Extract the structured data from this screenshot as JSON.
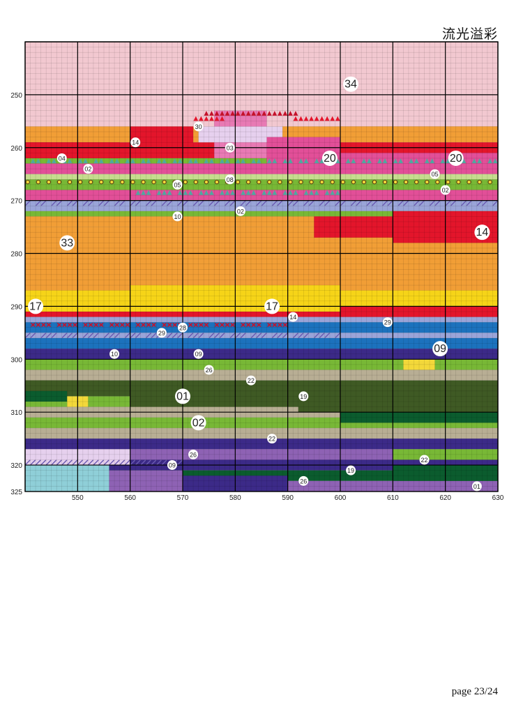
{
  "title": "流光溢彩",
  "page_label": "page 23/24",
  "grid": {
    "x_ticks": [
      550,
      560,
      570,
      580,
      590,
      600,
      610,
      620,
      630
    ],
    "y_ticks": [
      250,
      260,
      270,
      280,
      290,
      300,
      310,
      320,
      325
    ],
    "x_range": [
      540,
      630
    ],
    "y_range": [
      240,
      325
    ]
  },
  "palette": {
    "01": "#3f5a24",
    "02": "#78b836",
    "03": "#e87ab4",
    "04": "#4ea8a0",
    "05": "#f3d83a",
    "08": "#c6dc8e",
    "09": "#3c2a88",
    "10": "#9aa4d8",
    "14": "#e3152b",
    "17": "#f6d418",
    "19": "#0b5c2e",
    "20": "#e24f98",
    "22": "#b8ae94",
    "26": "#8e62b4",
    "28": "#b12a3c",
    "29": "#1c72bd",
    "30": "#e6d0ee",
    "33": "#f19e36",
    "34": "#f2c8d0",
    "sky2": "#8fcfd8"
  },
  "symbol_labels": [
    {
      "code": "34",
      "x": 602,
      "y": 248,
      "big": true
    },
    {
      "code": "14",
      "x": 561,
      "y": 259,
      "big": false
    },
    {
      "code": "30",
      "x": 573,
      "y": 256,
      "big": false
    },
    {
      "code": "03",
      "x": 579,
      "y": 260,
      "big": false
    },
    {
      "code": "20",
      "x": 598,
      "y": 262,
      "big": true
    },
    {
      "code": "20",
      "x": 622,
      "y": 262,
      "big": true
    },
    {
      "code": "04",
      "x": 547,
      "y": 262,
      "big": false
    },
    {
      "code": "02",
      "x": 552,
      "y": 264,
      "big": false
    },
    {
      "code": "05",
      "x": 569,
      "y": 267,
      "big": false
    },
    {
      "code": "08",
      "x": 579,
      "y": 266,
      "big": false
    },
    {
      "code": "05",
      "x": 618,
      "y": 265,
      "big": false
    },
    {
      "code": "02",
      "x": 620,
      "y": 268,
      "big": false
    },
    {
      "code": "02",
      "x": 581,
      "y": 272,
      "big": false
    },
    {
      "code": "10",
      "x": 569,
      "y": 273,
      "big": false
    },
    {
      "code": "14",
      "x": 627,
      "y": 276,
      "big": true
    },
    {
      "code": "33",
      "x": 548,
      "y": 278,
      "big": true
    },
    {
      "code": "17",
      "x": 542,
      "y": 290,
      "big": true
    },
    {
      "code": "17",
      "x": 587,
      "y": 290,
      "big": true
    },
    {
      "code": "14",
      "x": 591,
      "y": 292,
      "big": false
    },
    {
      "code": "29",
      "x": 609,
      "y": 293,
      "big": false
    },
    {
      "code": "28",
      "x": 570,
      "y": 294,
      "big": false
    },
    {
      "code": "29",
      "x": 566,
      "y": 295,
      "big": false
    },
    {
      "code": "09",
      "x": 619,
      "y": 298,
      "big": true
    },
    {
      "code": "09",
      "x": 573,
      "y": 299,
      "big": false
    },
    {
      "code": "10",
      "x": 557,
      "y": 299,
      "big": false
    },
    {
      "code": "26",
      "x": 575,
      "y": 302,
      "big": false
    },
    {
      "code": "22",
      "x": 583,
      "y": 304,
      "big": false
    },
    {
      "code": "19",
      "x": 593,
      "y": 307,
      "big": false
    },
    {
      "code": "01",
      "x": 570,
      "y": 307,
      "big": true
    },
    {
      "code": "02",
      "x": 573,
      "y": 312,
      "big": true
    },
    {
      "code": "22",
      "x": 587,
      "y": 315,
      "big": false
    },
    {
      "code": "26",
      "x": 572,
      "y": 318,
      "big": false
    },
    {
      "code": "22",
      "x": 616,
      "y": 319,
      "big": false
    },
    {
      "code": "09",
      "x": 568,
      "y": 320,
      "big": false
    },
    {
      "code": "19",
      "x": 602,
      "y": 321,
      "big": false
    },
    {
      "code": "26",
      "x": 593,
      "y": 323,
      "big": false
    },
    {
      "code": "01",
      "x": 626,
      "y": 324,
      "big": false
    }
  ]
}
